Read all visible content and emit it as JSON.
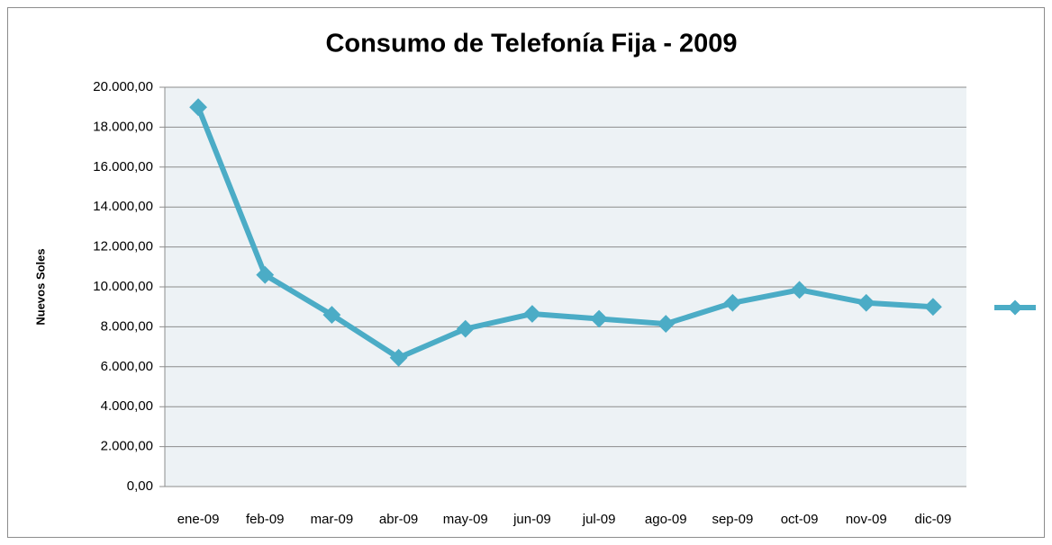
{
  "chart_data": {
    "type": "line",
    "title": "Consumo de Telefonía Fija - 2009",
    "y_label": "Nuevos Soles",
    "categories": [
      "ene-09",
      "feb-09",
      "mar-09",
      "abr-09",
      "may-09",
      "jun-09",
      "jul-09",
      "ago-09",
      "sep-09",
      "oct-09",
      "nov-09",
      "dic-09"
    ],
    "values": [
      19000,
      10600,
      8600,
      6450,
      7900,
      8650,
      8400,
      8150,
      9200,
      9850,
      9200,
      9000
    ],
    "color": "#4bacc6",
    "ylim": [
      0,
      20000
    ],
    "yticks": [
      {
        "value": 0,
        "label": "0,00"
      },
      {
        "value": 2000,
        "label": "2.000,00"
      },
      {
        "value": 4000,
        "label": "4.000,00"
      },
      {
        "value": 6000,
        "label": "6.000,00"
      },
      {
        "value": 8000,
        "label": "8.000,00"
      },
      {
        "value": 10000,
        "label": "10.000,00"
      },
      {
        "value": 12000,
        "label": "12.000,00"
      },
      {
        "value": 14000,
        "label": "14.000,00"
      },
      {
        "value": 16000,
        "label": "16.000,00"
      },
      {
        "value": 18000,
        "label": "18.000,00"
      },
      {
        "value": 20000,
        "label": "20.000,00"
      }
    ],
    "grid": true
  }
}
